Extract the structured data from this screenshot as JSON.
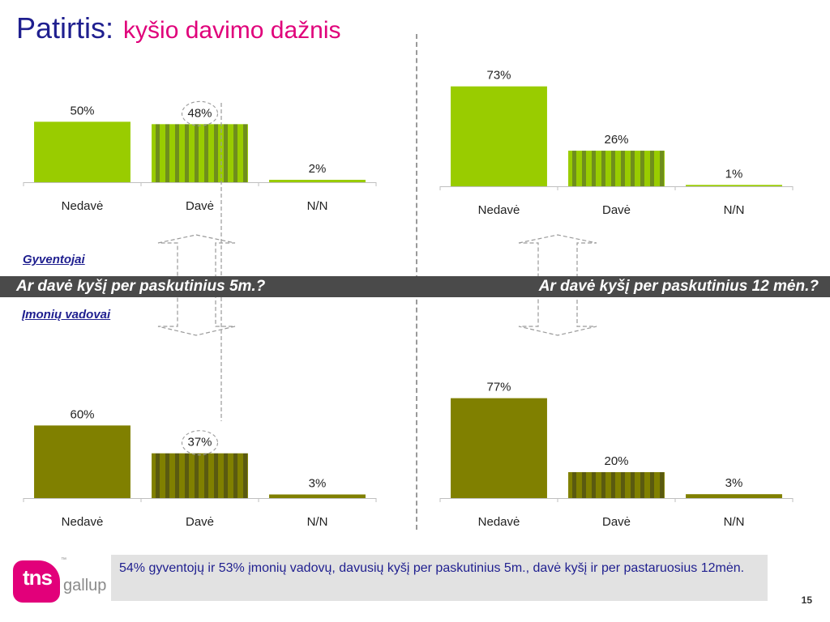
{
  "title": {
    "main": "Patirtis:",
    "sub": "kyšio davimo dažnis"
  },
  "band": {
    "left_question": "Ar davė kyšį per paskutinius 5m.?",
    "right_question": "Ar davė kyšį per paskutinius 12 mėn.?"
  },
  "group_labels": {
    "top": "Gyventojai",
    "bottom": "Įmonių vadovai"
  },
  "footer_text": "54% gyventojų ir 53% įmonių vadovų, davusių kyšį per paskutinius 5m., davė kyšį ir per pastaruosius 12mėn.",
  "page_number": "15",
  "logo": {
    "tns": "tns",
    "gallup": "gallup",
    "tm": "™"
  },
  "colors": {
    "light_green": "#99cc00",
    "light_green_stripe": "#6f8e1c",
    "olive": "#808000",
    "olive_stripe": "#5a5a10",
    "accent_magenta": "#e0007a",
    "title_blue": "#1f1f8f"
  },
  "chart_data": [
    {
      "type": "bar",
      "panel": "Gyventojai – paskutiniai 5m.",
      "categories": [
        "Nedavė",
        "Davė",
        "N/N"
      ],
      "values": [
        50,
        48,
        2
      ],
      "value_labels": [
        "50%",
        "48%",
        "2%"
      ],
      "unit": "%",
      "ylim": [
        0,
        75
      ],
      "palette": "light",
      "highlight_index": 1
    },
    {
      "type": "bar",
      "panel": "Gyventojai – paskutiniai 12 mėn.",
      "categories": [
        "Nedavė",
        "Davė",
        "N/N"
      ],
      "values": [
        73,
        26,
        1
      ],
      "value_labels": [
        "73%",
        "26%",
        "1%"
      ],
      "unit": "%",
      "ylim": [
        0,
        87
      ],
      "palette": "light"
    },
    {
      "type": "bar",
      "panel": "Įmonių vadovai – paskutiniai 5m.",
      "categories": [
        "Nedavė",
        "Davė",
        "N/N"
      ],
      "values": [
        60,
        37,
        3
      ],
      "value_labels": [
        "60%",
        "37%",
        "3%"
      ],
      "unit": "%",
      "ylim": [
        0,
        85
      ],
      "palette": "olive",
      "highlight_index": 1
    },
    {
      "type": "bar",
      "panel": "Įmonių vadovai – paskutiniai 12 mėn.",
      "categories": [
        "Nedavė",
        "Davė",
        "N/N"
      ],
      "values": [
        77,
        20,
        3
      ],
      "value_labels": [
        "77%",
        "20%",
        "3%"
      ],
      "unit": "%",
      "ylim": [
        0,
        98
      ],
      "palette": "olive"
    }
  ]
}
